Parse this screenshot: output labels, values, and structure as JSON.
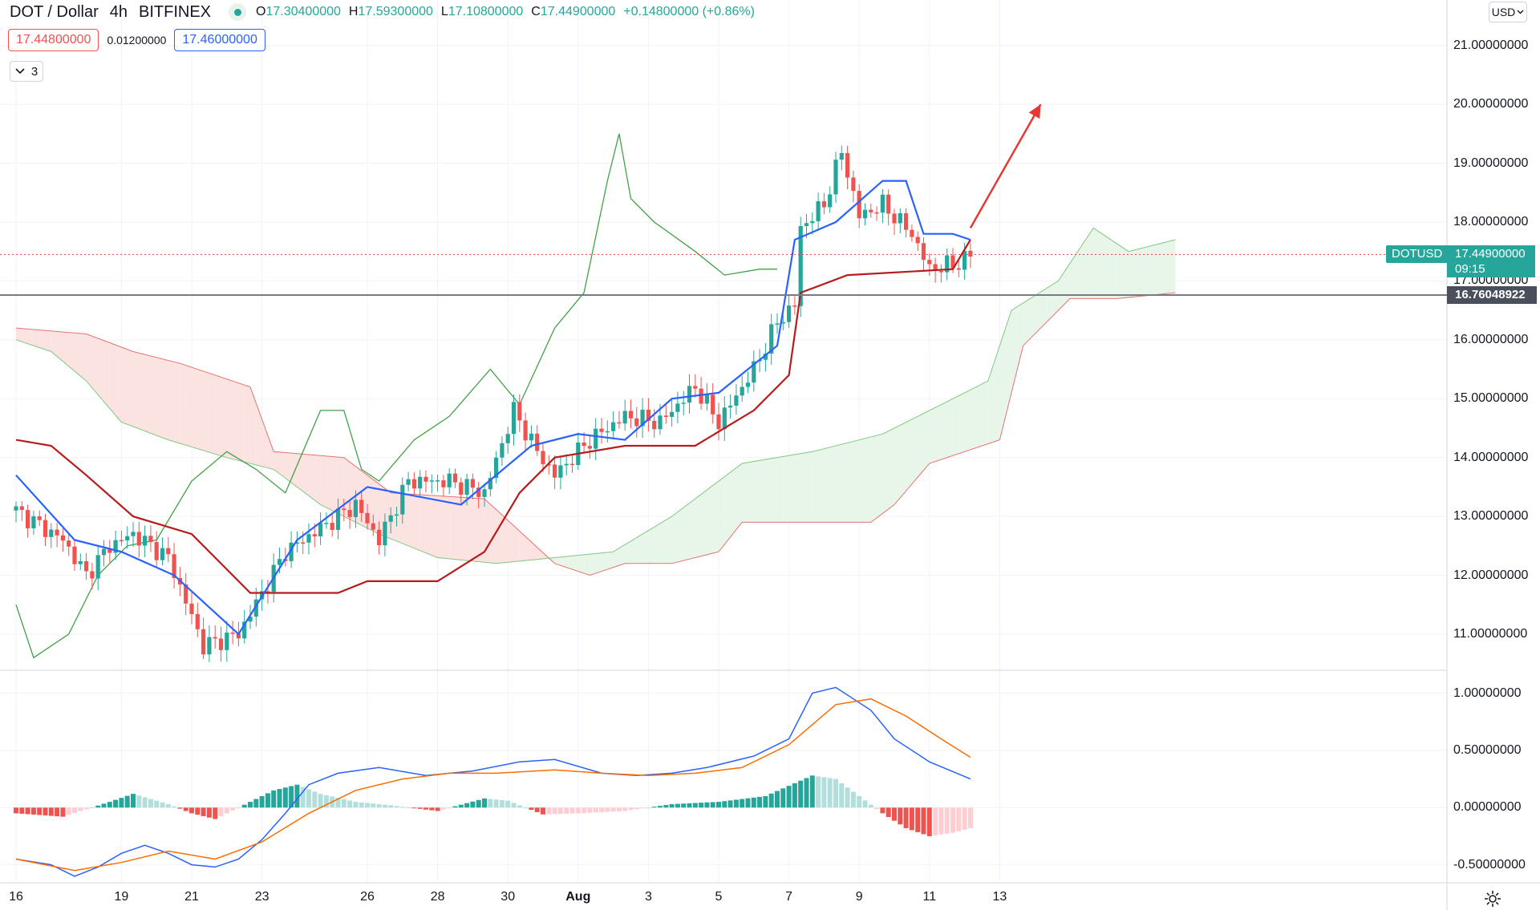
{
  "header": {
    "symbol": "DOT / Dollar",
    "interval": "4h",
    "exchange": "BITFINEX",
    "ohlc": {
      "o_label": "O",
      "o": "17.30400000",
      "h_label": "H",
      "h": "17.59300000",
      "l_label": "L",
      "l": "17.10800000",
      "c_label": "C",
      "c": "17.44900000",
      "change": "+0.14800000 (+0.86%)"
    },
    "sell_price": "17.44800000",
    "spread": "0.01200000",
    "buy_price": "17.46000000",
    "indicators_toggle_icon": "chevron-down-icon",
    "indicators_count": "3",
    "currency": "USD"
  },
  "price_axis": {
    "labels": [
      "21.00000000",
      "20.00000000",
      "19.00000000",
      "18.00000000",
      "17.00000000",
      "16.00000000",
      "15.00000000",
      "14.00000000",
      "13.00000000",
      "12.00000000",
      "11.00000000"
    ],
    "last_price_symbol": "DOTUSD",
    "last_price": "17.44900000",
    "countdown": "09:15",
    "hline_price": "16.76048922"
  },
  "macd_axis": {
    "labels": [
      "1.00000000",
      "0.50000000",
      "0.00000000",
      "-0.50000000"
    ]
  },
  "time_axis": {
    "labels": [
      "16",
      "19",
      "21",
      "23",
      "26",
      "28",
      "30",
      "Aug",
      "3",
      "5",
      "7",
      "9",
      "11",
      "13"
    ],
    "bold": [
      false,
      false,
      false,
      false,
      false,
      false,
      false,
      true,
      false,
      false,
      false,
      false,
      false,
      false
    ]
  },
  "colors": {
    "up": "#26a69a",
    "down": "#ef5350",
    "conversion_line": "#2962ff",
    "base_line": "#b71c1c",
    "lagging_span": "#43a047",
    "cloud_bull": "#e8f5e9",
    "cloud_bear": "#fbe3e1",
    "macd_line": "#2962ff",
    "signal_line": "#ff6d00",
    "arrow": "#e53935",
    "hline": "#787b86"
  },
  "chart_data": [
    {
      "type": "candlestick",
      "title": "DOT / Dollar 4h BITFINEX",
      "indicators": [
        "Ichimoku Cloud",
        "MACD"
      ],
      "ylim": [
        10.4,
        21.5
      ],
      "x_ticks": [
        "16",
        "19",
        "21",
        "23",
        "26",
        "28",
        "30",
        "Aug",
        "3",
        "5",
        "7",
        "9",
        "11",
        "13"
      ],
      "last_close": 17.449,
      "horizontal_line": 16.76048922,
      "anchors": [
        [
          0,
          13.1
        ],
        [
          8,
          12.6
        ],
        [
          12,
          12.0
        ],
        [
          16,
          12.5
        ],
        [
          20,
          12.7
        ],
        [
          26,
          12.3
        ],
        [
          32,
          10.8
        ],
        [
          38,
          11.0
        ],
        [
          46,
          12.4
        ],
        [
          52,
          12.8
        ],
        [
          58,
          13.2
        ],
        [
          62,
          12.6
        ],
        [
          67,
          13.6
        ],
        [
          74,
          13.6
        ],
        [
          80,
          13.4
        ],
        [
          85,
          14.8
        ],
        [
          89,
          14.1
        ],
        [
          92,
          13.7
        ],
        [
          98,
          14.3
        ],
        [
          104,
          14.7
        ],
        [
          110,
          14.6
        ],
        [
          116,
          15.2
        ],
        [
          120,
          14.6
        ],
        [
          126,
          15.5
        ],
        [
          130,
          16.3
        ],
        [
          133,
          16.6
        ],
        [
          134,
          17.9
        ],
        [
          138,
          18.3
        ],
        [
          141,
          19.2
        ],
        [
          144,
          18.1
        ],
        [
          148,
          18.3
        ],
        [
          153,
          17.8
        ],
        [
          156,
          17.2
        ],
        [
          161,
          17.3
        ],
        [
          163,
          17.45
        ]
      ],
      "ichimoku": {
        "conversion_line": [
          [
            0,
            13.7
          ],
          [
            10,
            12.6
          ],
          [
            18,
            12.4
          ],
          [
            27,
            12.0
          ],
          [
            38,
            11.0
          ],
          [
            48,
            12.6
          ],
          [
            60,
            13.5
          ],
          [
            76,
            13.2
          ],
          [
            88,
            14.2
          ],
          [
            96,
            14.4
          ],
          [
            104,
            14.3
          ],
          [
            112,
            15.0
          ],
          [
            120,
            15.1
          ],
          [
            130,
            15.9
          ],
          [
            133,
            17.7
          ],
          [
            140,
            18.0
          ],
          [
            148,
            18.7
          ],
          [
            152,
            18.7
          ],
          [
            155,
            17.8
          ],
          [
            160,
            17.8
          ],
          [
            163,
            17.7
          ]
        ],
        "base_line": [
          [
            0,
            14.3
          ],
          [
            6,
            14.2
          ],
          [
            12,
            13.7
          ],
          [
            20,
            13.0
          ],
          [
            30,
            12.7
          ],
          [
            40,
            11.7
          ],
          [
            55,
            11.7
          ],
          [
            60,
            11.9
          ],
          [
            72,
            11.9
          ],
          [
            80,
            12.4
          ],
          [
            86,
            13.4
          ],
          [
            92,
            14.0
          ],
          [
            104,
            14.2
          ],
          [
            116,
            14.2
          ],
          [
            126,
            14.8
          ],
          [
            132,
            15.4
          ],
          [
            134,
            16.8
          ],
          [
            142,
            17.1
          ],
          [
            160,
            17.2
          ],
          [
            163,
            17.7
          ]
        ],
        "lagging_span": [
          [
            0,
            11.5
          ],
          [
            3,
            10.6
          ],
          [
            9,
            11.0
          ],
          [
            14,
            12.0
          ],
          [
            19,
            12.5
          ],
          [
            24,
            12.6
          ],
          [
            30,
            13.6
          ],
          [
            36,
            14.1
          ],
          [
            41,
            13.8
          ],
          [
            46,
            13.4
          ],
          [
            52,
            14.8
          ],
          [
            56,
            14.8
          ],
          [
            59,
            13.8
          ],
          [
            62,
            13.6
          ],
          [
            68,
            14.3
          ],
          [
            74,
            14.7
          ],
          [
            81,
            15.5
          ],
          [
            86,
            14.9
          ],
          [
            92,
            16.2
          ],
          [
            97,
            16.8
          ],
          [
            101,
            18.7
          ],
          [
            103,
            19.5
          ],
          [
            105,
            18.4
          ],
          [
            109,
            18.0
          ],
          [
            116,
            17.5
          ],
          [
            121,
            17.1
          ],
          [
            127,
            17.2
          ],
          [
            130,
            17.2
          ]
        ],
        "span_a": [
          [
            0,
            16.0
          ],
          [
            6,
            15.8
          ],
          [
            12,
            15.3
          ],
          [
            18,
            14.6
          ],
          [
            26,
            14.3
          ],
          [
            36,
            14.0
          ],
          [
            44,
            13.8
          ],
          [
            52,
            13.2
          ],
          [
            62,
            12.7
          ],
          [
            72,
            12.3
          ],
          [
            82,
            12.2
          ],
          [
            92,
            12.3
          ],
          [
            102,
            12.4
          ],
          [
            112,
            13.0
          ],
          [
            124,
            13.9
          ],
          [
            136,
            14.1
          ],
          [
            148,
            14.4
          ],
          [
            160,
            15.0
          ],
          [
            166,
            15.3
          ],
          [
            170,
            16.5
          ],
          [
            178,
            17.0
          ],
          [
            184,
            17.9
          ],
          [
            190,
            17.5
          ],
          [
            198,
            17.7
          ]
        ],
        "span_b": [
          [
            0,
            16.2
          ],
          [
            12,
            16.1
          ],
          [
            20,
            15.8
          ],
          [
            28,
            15.6
          ],
          [
            40,
            15.2
          ],
          [
            44,
            14.1
          ],
          [
            56,
            14.0
          ],
          [
            64,
            13.4
          ],
          [
            80,
            13.3
          ],
          [
            92,
            12.2
          ],
          [
            98,
            12.0
          ],
          [
            104,
            12.2
          ],
          [
            112,
            12.2
          ],
          [
            120,
            12.4
          ],
          [
            124,
            12.9
          ],
          [
            136,
            12.9
          ],
          [
            146,
            12.9
          ],
          [
            150,
            13.2
          ],
          [
            156,
            13.9
          ],
          [
            168,
            14.3
          ],
          [
            172,
            15.9
          ],
          [
            180,
            16.7
          ],
          [
            188,
            16.7
          ],
          [
            198,
            16.8
          ]
        ]
      },
      "arrow": {
        "from": [
          163,
          17.9
        ],
        "to": [
          175,
          20.0
        ]
      }
    },
    {
      "type": "line",
      "title": "MACD",
      "ylim": [
        -0.65,
        1.2
      ],
      "macd_line": [
        [
          0,
          -0.45
        ],
        [
          6,
          -0.5
        ],
        [
          10,
          -0.6
        ],
        [
          14,
          -0.52
        ],
        [
          18,
          -0.4
        ],
        [
          22,
          -0.33
        ],
        [
          26,
          -0.4
        ],
        [
          30,
          -0.5
        ],
        [
          34,
          -0.52
        ],
        [
          38,
          -0.45
        ],
        [
          42,
          -0.28
        ],
        [
          46,
          -0.05
        ],
        [
          50,
          0.2
        ],
        [
          55,
          0.3
        ],
        [
          62,
          0.35
        ],
        [
          70,
          0.28
        ],
        [
          78,
          0.32
        ],
        [
          86,
          0.4
        ],
        [
          92,
          0.42
        ],
        [
          100,
          0.3
        ],
        [
          106,
          0.28
        ],
        [
          112,
          0.3
        ],
        [
          118,
          0.35
        ],
        [
          126,
          0.45
        ],
        [
          132,
          0.6
        ],
        [
          136,
          1.0
        ],
        [
          140,
          1.05
        ],
        [
          146,
          0.85
        ],
        [
          150,
          0.6
        ],
        [
          156,
          0.4
        ],
        [
          163,
          0.25
        ]
      ],
      "signal_line": [
        [
          0,
          -0.45
        ],
        [
          10,
          -0.55
        ],
        [
          18,
          -0.48
        ],
        [
          26,
          -0.38
        ],
        [
          34,
          -0.45
        ],
        [
          42,
          -0.3
        ],
        [
          50,
          -0.05
        ],
        [
          58,
          0.15
        ],
        [
          66,
          0.25
        ],
        [
          74,
          0.3
        ],
        [
          82,
          0.3
        ],
        [
          92,
          0.33
        ],
        [
          100,
          0.3
        ],
        [
          108,
          0.28
        ],
        [
          116,
          0.3
        ],
        [
          124,
          0.35
        ],
        [
          132,
          0.55
        ],
        [
          140,
          0.9
        ],
        [
          146,
          0.95
        ],
        [
          152,
          0.8
        ],
        [
          158,
          0.6
        ],
        [
          163,
          0.44
        ]
      ],
      "histogram": [
        [
          0,
          -0.05
        ],
        [
          8,
          -0.08
        ],
        [
          16,
          0.05
        ],
        [
          20,
          0.12
        ],
        [
          26,
          0.03
        ],
        [
          30,
          -0.05
        ],
        [
          34,
          -0.1
        ],
        [
          40,
          0.05
        ],
        [
          44,
          0.15
        ],
        [
          48,
          0.2
        ],
        [
          52,
          0.12
        ],
        [
          58,
          0.05
        ],
        [
          64,
          0.02
        ],
        [
          72,
          -0.03
        ],
        [
          80,
          0.08
        ],
        [
          84,
          0.06
        ],
        [
          90,
          -0.06
        ],
        [
          96,
          -0.05
        ],
        [
          104,
          -0.03
        ],
        [
          112,
          0.03
        ],
        [
          120,
          0.05
        ],
        [
          128,
          0.1
        ],
        [
          136,
          0.28
        ],
        [
          140,
          0.25
        ],
        [
          144,
          0.1
        ],
        [
          148,
          -0.05
        ],
        [
          152,
          -0.18
        ],
        [
          156,
          -0.25
        ],
        [
          160,
          -0.22
        ],
        [
          163,
          -0.18
        ]
      ]
    }
  ]
}
